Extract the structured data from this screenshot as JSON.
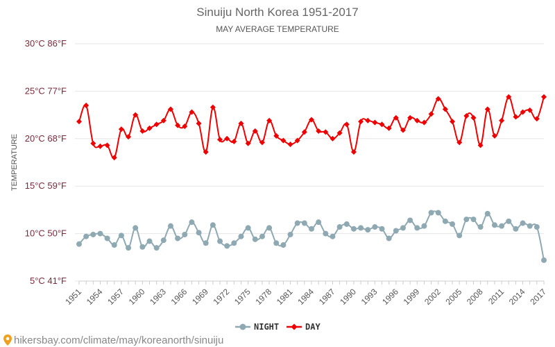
{
  "chart_data": {
    "type": "line",
    "title": "Sinuiju North Korea 1951-2017",
    "subtitle": "MAY AVERAGE TEMPERATURE",
    "ylabel": "TEMPERATURE",
    "y_ticks": [
      {
        "value": 30,
        "label": "30°C 86°F"
      },
      {
        "value": 25,
        "label": "25°C 77°F"
      },
      {
        "value": 20,
        "label": "20°C 68°F"
      },
      {
        "value": 15,
        "label": "15°C 59°F"
      },
      {
        "value": 10,
        "label": "10°C 50°F"
      },
      {
        "value": 5,
        "label": "5°C 41°F"
      }
    ],
    "ylim": [
      5,
      30
    ],
    "x": [
      1951,
      1952,
      1953,
      1954,
      1955,
      1956,
      1957,
      1958,
      1959,
      1960,
      1961,
      1962,
      1963,
      1964,
      1965,
      1966,
      1967,
      1968,
      1969,
      1970,
      1971,
      1972,
      1973,
      1974,
      1975,
      1976,
      1977,
      1978,
      1979,
      1980,
      1981,
      1982,
      1983,
      1984,
      1985,
      1986,
      1987,
      1988,
      1989,
      1990,
      1991,
      1992,
      1993,
      1994,
      1995,
      1996,
      1997,
      1998,
      1999,
      2000,
      2001,
      2002,
      2003,
      2004,
      2005,
      2006,
      2007,
      2008,
      2009,
      2010,
      2011,
      2012,
      2013,
      2014,
      2015,
      2016,
      2017
    ],
    "x_tick_labels": [
      "1951",
      "1954",
      "1957",
      "1960",
      "1963",
      "1966",
      "1969",
      "1972",
      "1975",
      "1978",
      "1981",
      "1984",
      "1987",
      "1990",
      "1993",
      "1996",
      "1999",
      "2002",
      "2005",
      "2008",
      "2011",
      "2014",
      "2017"
    ],
    "grid": true,
    "legend_position": "bottom",
    "series": [
      {
        "name": "NIGHT",
        "color": "#8fa9b3",
        "marker": "circle",
        "values": [
          8.9,
          9.7,
          9.9,
          10.0,
          9.5,
          8.8,
          9.8,
          8.5,
          10.6,
          8.6,
          9.2,
          8.5,
          9.3,
          10.8,
          9.5,
          9.9,
          11.2,
          10.1,
          9.0,
          10.9,
          9.2,
          8.7,
          9.0,
          9.7,
          10.6,
          9.4,
          9.7,
          10.6,
          9.0,
          8.8,
          9.9,
          11.1,
          11.1,
          10.5,
          11.2,
          10.0,
          9.7,
          10.7,
          11.0,
          10.5,
          10.6,
          10.4,
          10.7,
          10.5,
          9.5,
          10.3,
          10.6,
          11.4,
          10.6,
          10.8,
          12.2,
          12.2,
          11.3,
          11.0,
          9.8,
          11.5,
          11.5,
          10.7,
          12.1,
          10.9,
          10.8,
          11.3,
          10.5,
          11.1,
          10.8,
          10.7,
          7.2
        ]
      },
      {
        "name": "DAY",
        "color": "#ee0000",
        "marker": "diamond",
        "values": [
          21.8,
          23.5,
          19.5,
          19.2,
          19.3,
          18.0,
          21.0,
          20.2,
          22.5,
          20.8,
          21.1,
          21.5,
          21.9,
          23.1,
          21.4,
          21.3,
          22.8,
          21.6,
          18.6,
          23.3,
          19.9,
          20.0,
          19.7,
          21.6,
          19.5,
          20.8,
          19.6,
          21.9,
          20.3,
          19.8,
          19.4,
          19.8,
          20.7,
          22.0,
          20.8,
          20.7,
          20.0,
          20.6,
          21.5,
          18.6,
          21.8,
          21.9,
          21.7,
          21.5,
          21.1,
          22.2,
          20.9,
          22.2,
          21.9,
          21.7,
          22.6,
          24.2,
          23.1,
          21.8,
          19.6,
          22.4,
          22.2,
          19.3,
          23.1,
          20.3,
          21.9,
          24.4,
          22.3,
          22.8,
          23.0,
          22.1,
          24.4
        ]
      }
    ]
  },
  "footer": {
    "url_text": "hikersbay.com/climate/may/koreanorth/sinuiju",
    "pin_icon": "location-pin-icon"
  }
}
